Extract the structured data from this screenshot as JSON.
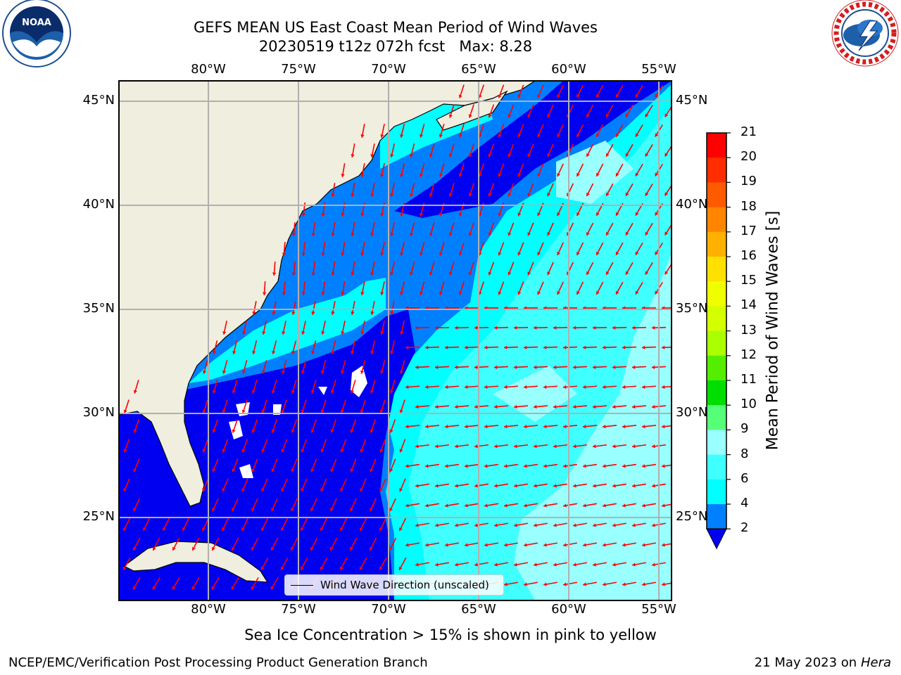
{
  "title": {
    "line1": "GEFS MEAN US East Coast Mean Period of Wind Waves",
    "line2": "20230519 t12z 072h fcst   Max: 8.28"
  },
  "logos": {
    "left": {
      "text": "NOAA",
      "icon": "noaa-logo-icon",
      "ring_text": "NATIONAL OCEANIC AND ATMOSPHERIC ADMINISTRATION · U.S. DEPARTMENT OF COMMERCE"
    },
    "right": {
      "icon": "nws-logo-icon",
      "ring_text": "NATIONAL WEATHER SERVICE"
    }
  },
  "map": {
    "lon_ticks_top": [
      "80°W",
      "75°W",
      "70°W",
      "65°W",
      "60°W",
      "55°W"
    ],
    "lon_ticks_bottom": [
      "80°W",
      "75°W",
      "70°W",
      "65°W",
      "60°W",
      "55°W"
    ],
    "lat_ticks_left": [
      "45°N",
      "40°N",
      "35°N",
      "30°N",
      "25°N"
    ],
    "lat_ticks_right": [
      "45°N",
      "40°N",
      "35°N",
      "30°N",
      "25°N"
    ],
    "legend_label": "Wind Wave Direction (unscaled)",
    "colors": {
      "land": "#efeedf",
      "water_2_4": "#0080ff",
      "water_deep": "#0000f0",
      "water_4_6": "#00ffff",
      "water_6_8": "#40ffff",
      "water_8_9": "#99ffff",
      "arrows": "#ff0000",
      "grid": "#b0b0b0"
    }
  },
  "colorbar": {
    "label": "Mean Period of Wind Waves [s]",
    "ticks": [
      "21",
      "20",
      "19",
      "18",
      "17",
      "16",
      "15",
      "14",
      "13",
      "12",
      "11",
      "10",
      "9",
      "8",
      "6",
      "4",
      "2"
    ],
    "bins": [
      {
        "from": 20,
        "to": 21,
        "color": "#ff0000"
      },
      {
        "from": 19,
        "to": 20,
        "color": "#ff2d00"
      },
      {
        "from": 18,
        "to": 19,
        "color": "#ff5a00"
      },
      {
        "from": 17,
        "to": 18,
        "color": "#ff8500"
      },
      {
        "from": 16,
        "to": 17,
        "color": "#ffb000"
      },
      {
        "from": 15,
        "to": 16,
        "color": "#ffe000"
      },
      {
        "from": 14,
        "to": 15,
        "color": "#f0ff00"
      },
      {
        "from": 13,
        "to": 14,
        "color": "#d4ff00"
      },
      {
        "from": 12,
        "to": 13,
        "color": "#aaff00"
      },
      {
        "from": 11,
        "to": 12,
        "color": "#55ee00"
      },
      {
        "from": 10,
        "to": 11,
        "color": "#00dd00"
      },
      {
        "from": 9,
        "to": 10,
        "color": "#55ff77"
      },
      {
        "from": 8,
        "to": 9,
        "color": "#99ffff"
      },
      {
        "from": 6,
        "to": 8,
        "color": "#40ffff"
      },
      {
        "from": 4,
        "to": 6,
        "color": "#00ffff"
      },
      {
        "from": 2,
        "to": 4,
        "color": "#0080ff"
      },
      {
        "from": 0,
        "to": 2,
        "color": "#0000f0"
      }
    ]
  },
  "subtitle": "Sea Ice Concentration > 15% is shown in pink to yellow",
  "footer": {
    "left": "NCEP/EMC/Verification Post Processing Product Generation Branch",
    "right_date": "21 May 2023 on",
    "right_machine": "Hera"
  }
}
